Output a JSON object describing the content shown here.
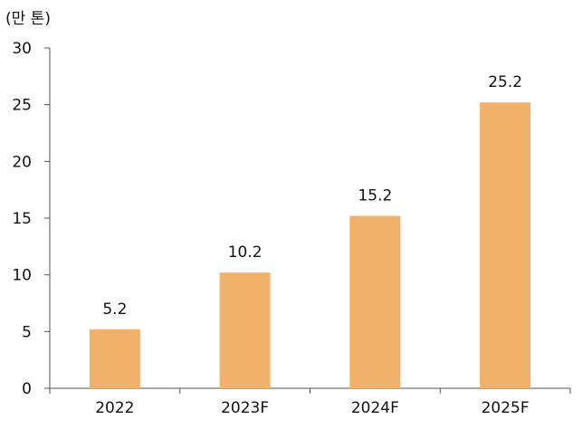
{
  "chart_data": {
    "type": "bar",
    "unit_label": "(만 톤)",
    "categories": [
      "2022",
      "2023F",
      "2024F",
      "2025F"
    ],
    "values": [
      5.2,
      10.2,
      15.2,
      25.2
    ],
    "data_labels": [
      "5.2",
      "10.2",
      "15.2",
      "25.2"
    ],
    "ylim": [
      0,
      30
    ],
    "yticks": [
      0,
      5,
      10,
      15,
      20,
      25,
      30
    ],
    "bar_color": "#F0B26A",
    "axis_color": "#555555",
    "grid": false,
    "legend": "none"
  }
}
